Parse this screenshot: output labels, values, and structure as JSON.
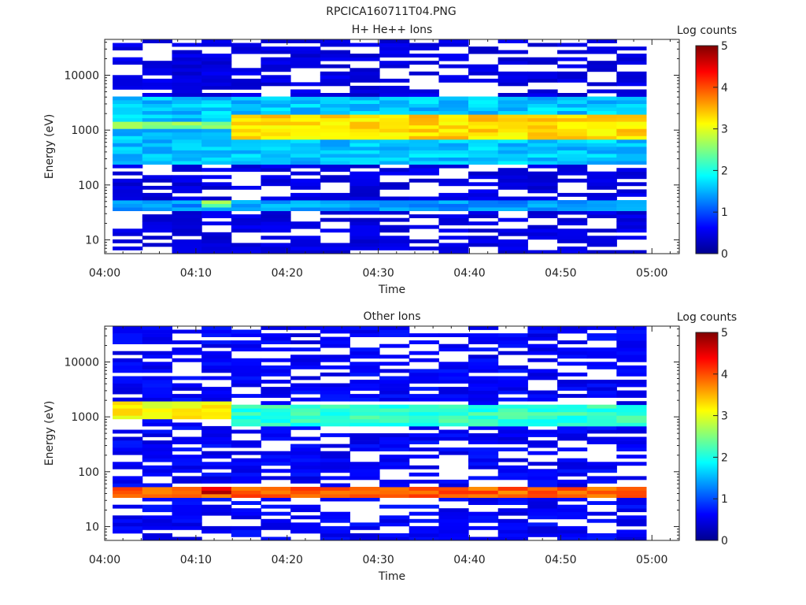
{
  "figure_title": "RPCICA160711T04.PNG",
  "chart_data": [
    {
      "type": "heatmap",
      "title": "H+ He++ Ions",
      "xlabel": "Time",
      "ylabel": "Energy (eV)",
      "xlim": [
        "04:00",
        "05:03"
      ],
      "ylim": [
        5.6,
        45000
      ],
      "y_scale": "log",
      "x_ticks": [
        "04:00",
        "04:10",
        "04:20",
        "04:30",
        "04:40",
        "04:50",
        "05:00"
      ],
      "y_ticks": [
        10,
        100,
        1000,
        10000
      ],
      "y_tick_labels": [
        "10",
        "100",
        "1000",
        "10000"
      ],
      "colorbar": {
        "label": "Log counts",
        "range": [
          0,
          5
        ],
        "ticks": [
          "0",
          "1",
          "2",
          "3",
          "4",
          "5"
        ]
      },
      "time_bins": [
        "04:02:30",
        "04:05:45",
        "04:09:00",
        "04:12:15",
        "04:15:30",
        "04:18:45",
        "04:22:00",
        "04:25:15",
        "04:28:30",
        "04:31:45",
        "04:35:00",
        "04:38:15",
        "04:41:30",
        "04:44:45",
        "04:48:00",
        "04:51:15",
        "04:54:30",
        "04:57:45"
      ],
      "bands": [
        {
          "energy_range_eV": [
            1000,
            1500
          ],
          "time_range": [
            "04:02",
            "04:15"
          ],
          "log_counts": 2.5
        },
        {
          "energy_range_eV": [
            700,
            1800
          ],
          "time_range": [
            "04:15",
            "05:00"
          ],
          "log_counts": 3.3
        },
        {
          "energy_range_eV": [
            250,
            4000
          ],
          "time_range": [
            "04:02",
            "05:00"
          ],
          "log_counts": 1.6
        },
        {
          "energy_range_eV": [
            35,
            50
          ],
          "time_range": [
            "04:02",
            "05:00"
          ],
          "log_counts": 1.4
        },
        {
          "energy_range_eV": [
            40,
            50
          ],
          "time_range": [
            "04:12",
            "04:15"
          ],
          "log_counts": 2.5
        },
        {
          "energy_range_eV": [
            6,
            45000
          ],
          "time_range": [
            "04:02",
            "05:00"
          ],
          "log_counts": 0.4
        }
      ]
    },
    {
      "type": "heatmap",
      "title": "Other Ions",
      "xlabel": "Time",
      "ylabel": "Energy (eV)",
      "xlim": [
        "04:00",
        "05:03"
      ],
      "ylim": [
        5.6,
        45000
      ],
      "y_scale": "log",
      "x_ticks": [
        "04:00",
        "04:10",
        "04:20",
        "04:30",
        "04:40",
        "04:50",
        "05:00"
      ],
      "y_ticks": [
        10,
        100,
        1000,
        10000
      ],
      "y_tick_labels": [
        "10",
        "100",
        "1000",
        "10000"
      ],
      "colorbar": {
        "label": "Log counts",
        "range": [
          0,
          5
        ],
        "ticks": [
          "0",
          "1",
          "2",
          "3",
          "4",
          "5"
        ]
      },
      "time_bins": [
        "04:02:30",
        "04:05:45",
        "04:09:00",
        "04:12:15",
        "04:15:30",
        "04:18:45",
        "04:22:00",
        "04:25:15",
        "04:28:30",
        "04:31:45",
        "04:35:00",
        "04:38:15",
        "04:41:30",
        "04:44:45",
        "04:48:00",
        "04:51:15",
        "04:54:30",
        "04:57:45"
      ],
      "bands": [
        {
          "energy_range_eV": [
            900,
            1800
          ],
          "time_range": [
            "04:02",
            "04:15"
          ],
          "log_counts": 3.1
        },
        {
          "energy_range_eV": [
            700,
            1600
          ],
          "time_range": [
            "04:15",
            "05:00"
          ],
          "log_counts": 2.1
        },
        {
          "energy_range_eV": [
            35,
            55
          ],
          "time_range": [
            "04:02",
            "05:00"
          ],
          "log_counts": 3.9
        },
        {
          "energy_range_eV": [
            40,
            50
          ],
          "time_range": [
            "04:12",
            "04:15"
          ],
          "log_counts": 4.6
        },
        {
          "energy_range_eV": [
            6,
            45000
          ],
          "time_range": [
            "04:02",
            "05:00"
          ],
          "log_counts": 0.5
        }
      ]
    }
  ]
}
